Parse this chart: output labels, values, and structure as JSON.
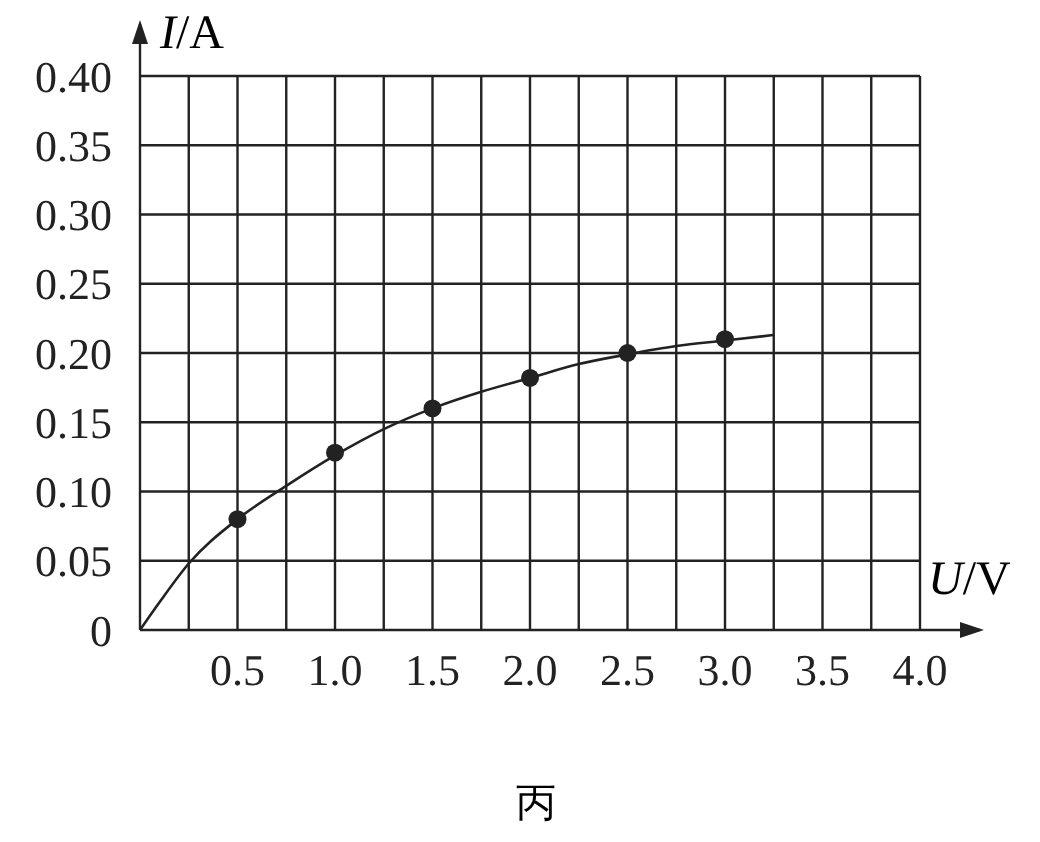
{
  "chart_data": {
    "type": "scatter",
    "xlabel": "U/V",
    "ylabel": "I/A",
    "annotations": [
      "丙"
    ],
    "xlim": [
      0,
      4
    ],
    "ylim": [
      0,
      0.4
    ],
    "xticks": [
      {
        "value": 0.25,
        "label": null
      },
      0.5,
      {
        "value": 0.75,
        "label": null
      },
      {
        "value": 1,
        "label": "1.0"
      },
      {
        "value": 1.25,
        "label": null
      },
      1.5,
      {
        "value": 1.75,
        "label": null
      },
      {
        "value": 2,
        "label": "2.0"
      },
      {
        "value": 2.25,
        "label": null
      },
      2.5,
      {
        "value": 2.75,
        "label": null
      },
      {
        "value": 3,
        "label": "3.0"
      },
      {
        "value": 3.25,
        "label": null
      },
      3.5,
      {
        "value": 3.75,
        "label": null
      },
      {
        "value": 4,
        "label": "4.0"
      }
    ],
    "yticks": [
      0,
      0.05,
      {
        "value": 0.1,
        "label": "0.10"
      },
      0.15,
      {
        "value": 0.2,
        "label": "0.20"
      },
      0.25,
      {
        "value": 0.3,
        "label": "0.30"
      },
      0.35,
      {
        "value": 0.4,
        "label": "0.40"
      }
    ],
    "grid": true,
    "marker": "circle",
    "series": [
      {
        "type": "line",
        "color": "#222222",
        "marker": "none",
        "x": [
          0,
          0.1,
          0.25,
          0.5,
          0.75,
          1,
          1.25,
          1.5,
          1.75,
          2,
          2.25,
          2.5,
          2.75,
          3,
          3.25
        ],
        "values": [
          0,
          0.02,
          0.048,
          0.08,
          0.104,
          0.126,
          0.145,
          0.16,
          0.172,
          0.182,
          0.192,
          0.199,
          0.205,
          0.209,
          0.213
        ]
      },
      {
        "color": "#222222",
        "x": [
          0.5,
          1,
          1.5,
          2,
          2.5,
          3
        ],
        "values": [
          0.08,
          0.128,
          0.16,
          0.182,
          0.2,
          0.21
        ]
      }
    ]
  }
}
